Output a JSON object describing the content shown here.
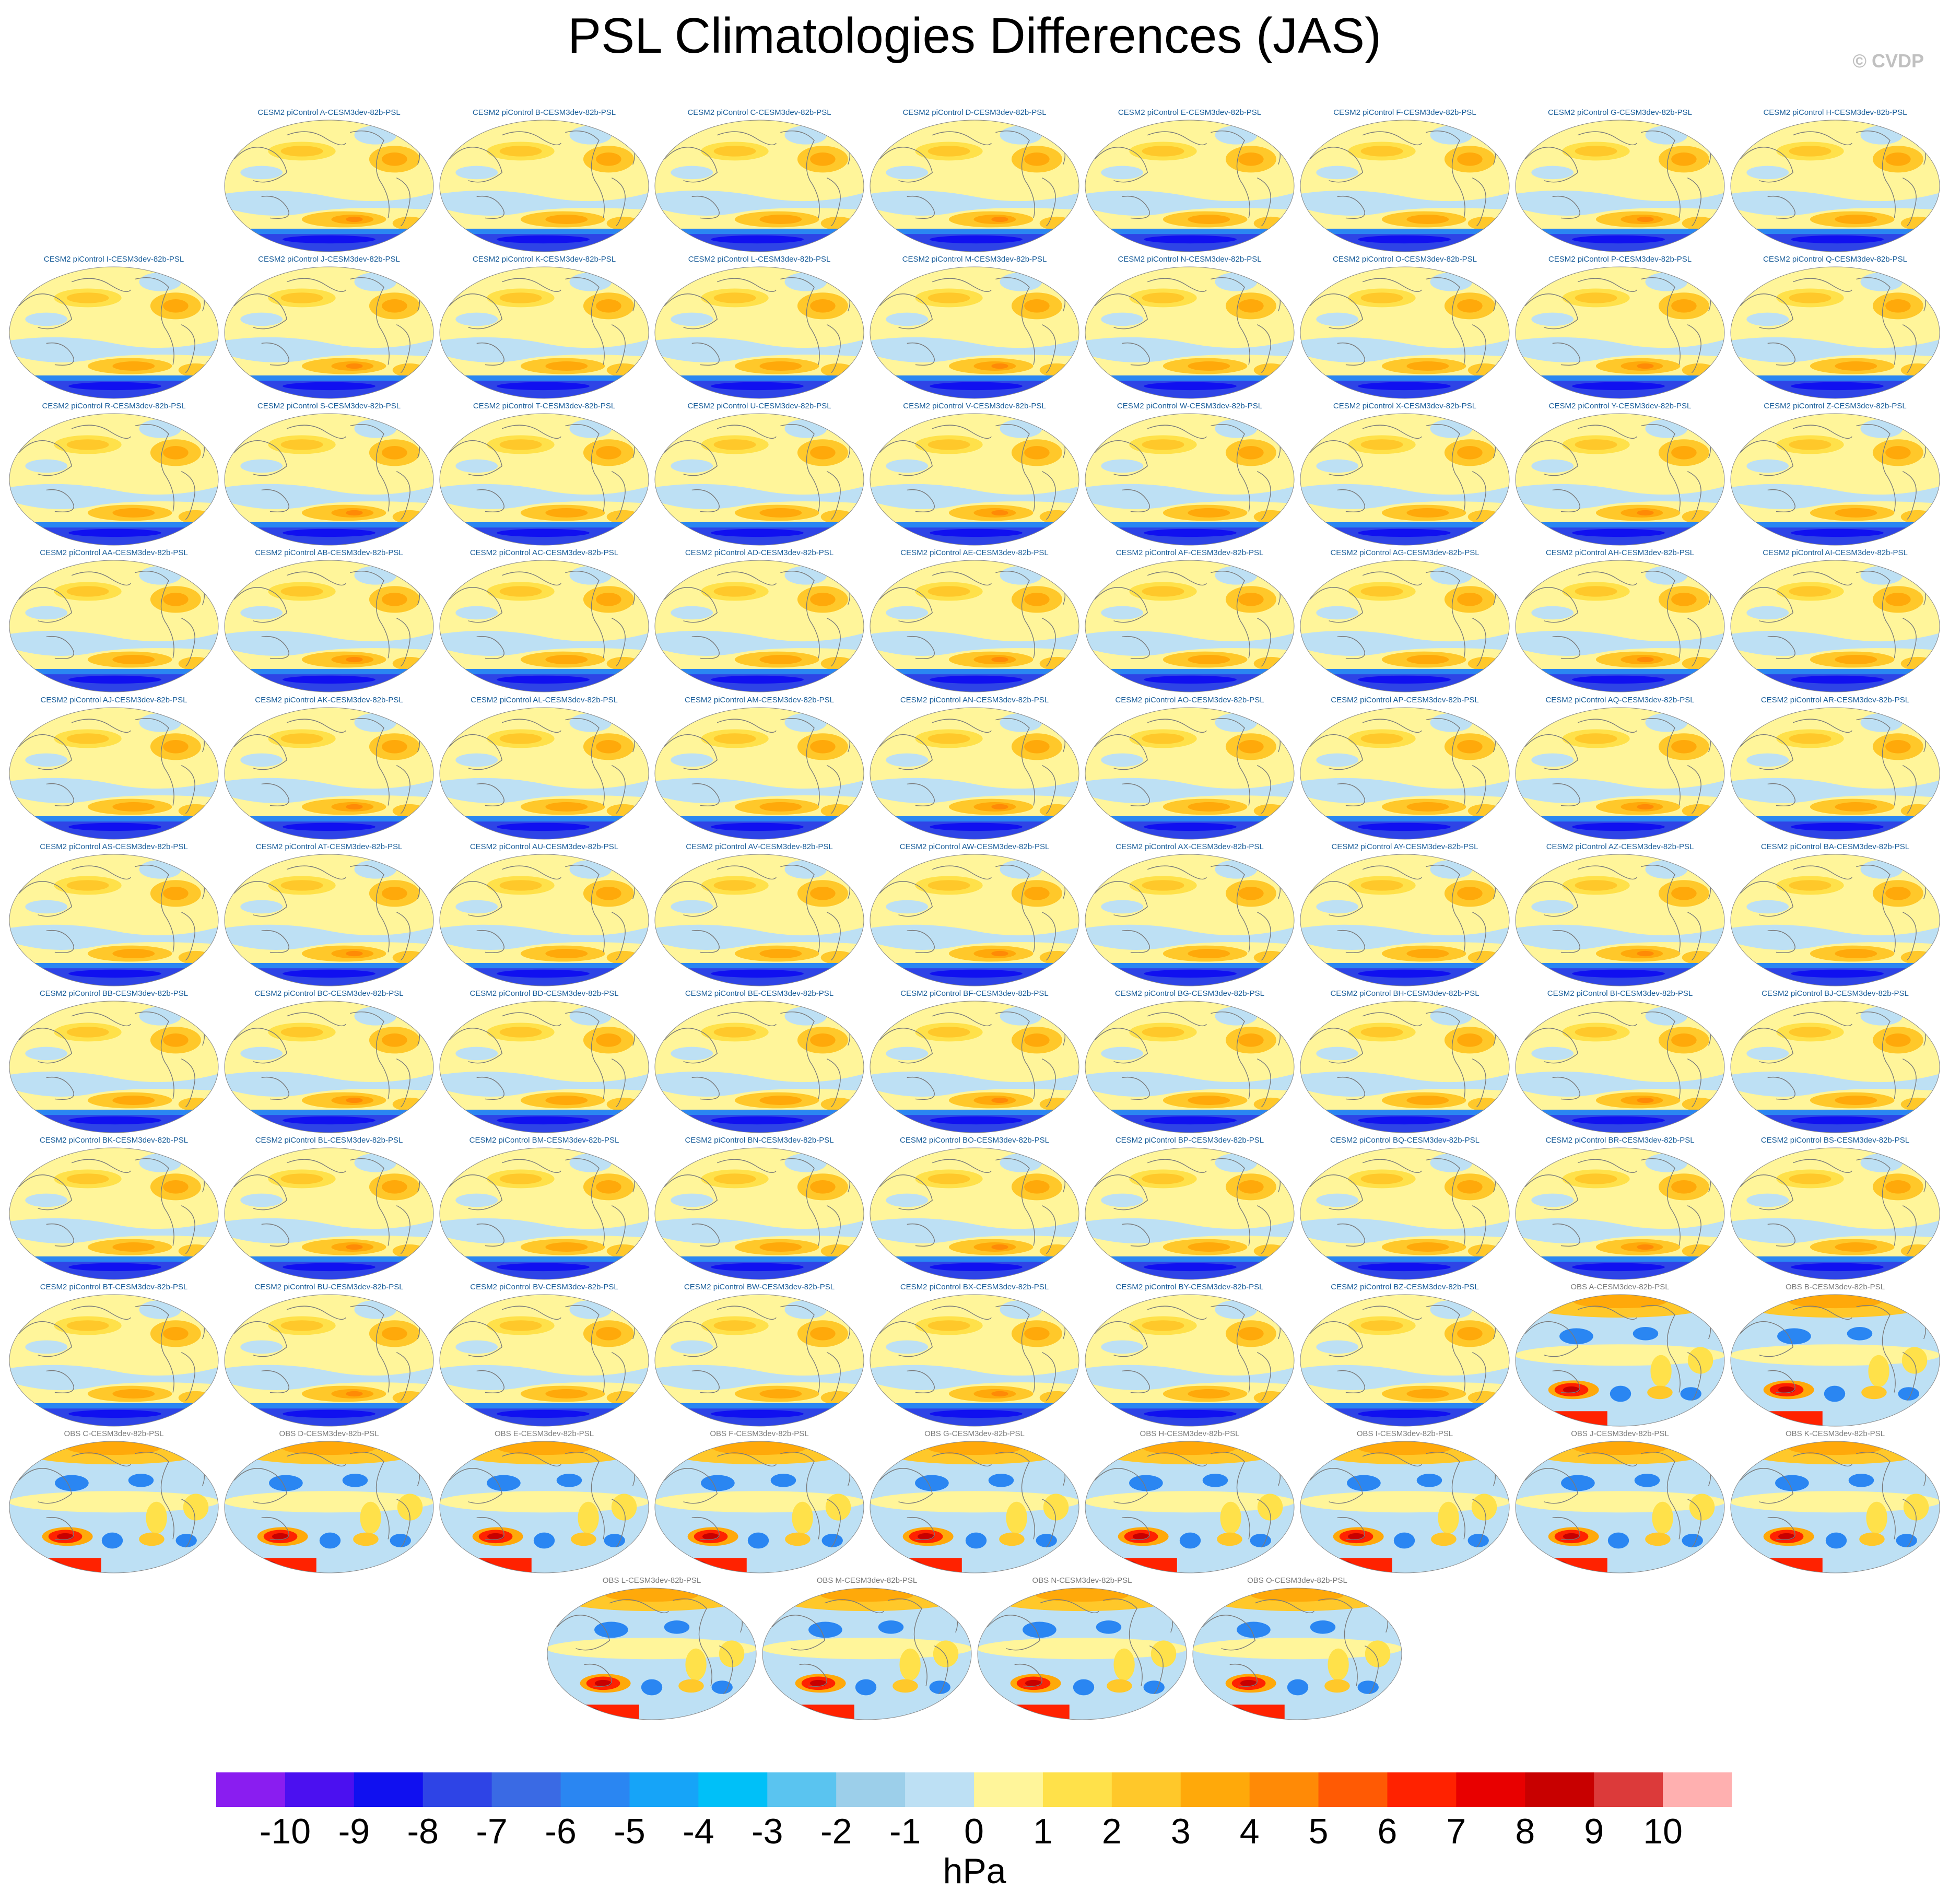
{
  "header": {
    "title": "PSL Climatologies Differences (JAS)",
    "copyright": "© CVDP"
  },
  "panels": [
    {
      "label": "CESM2 piControl A-CESM3dev-82b-PSL",
      "kind": "model"
    },
    {
      "label": "CESM2 piControl B-CESM3dev-82b-PSL",
      "kind": "model"
    },
    {
      "label": "CESM2 piControl C-CESM3dev-82b-PSL",
      "kind": "model"
    },
    {
      "label": "CESM2 piControl D-CESM3dev-82b-PSL",
      "kind": "model"
    },
    {
      "label": "CESM2 piControl E-CESM3dev-82b-PSL",
      "kind": "model"
    },
    {
      "label": "CESM2 piControl F-CESM3dev-82b-PSL",
      "kind": "model"
    },
    {
      "label": "CESM2 piControl G-CESM3dev-82b-PSL",
      "kind": "model"
    },
    {
      "label": "CESM2 piControl H-CESM3dev-82b-PSL",
      "kind": "model"
    },
    {
      "label": "CESM2 piControl I-CESM3dev-82b-PSL",
      "kind": "model"
    },
    {
      "label": "CESM2 piControl J-CESM3dev-82b-PSL",
      "kind": "model"
    },
    {
      "label": "CESM2 piControl K-CESM3dev-82b-PSL",
      "kind": "model"
    },
    {
      "label": "CESM2 piControl L-CESM3dev-82b-PSL",
      "kind": "model"
    },
    {
      "label": "CESM2 piControl M-CESM3dev-82b-PSL",
      "kind": "model"
    },
    {
      "label": "CESM2 piControl N-CESM3dev-82b-PSL",
      "kind": "model"
    },
    {
      "label": "CESM2 piControl O-CESM3dev-82b-PSL",
      "kind": "model"
    },
    {
      "label": "CESM2 piControl P-CESM3dev-82b-PSL",
      "kind": "model"
    },
    {
      "label": "CESM2 piControl Q-CESM3dev-82b-PSL",
      "kind": "model"
    },
    {
      "label": "CESM2 piControl R-CESM3dev-82b-PSL",
      "kind": "model"
    },
    {
      "label": "CESM2 piControl S-CESM3dev-82b-PSL",
      "kind": "model"
    },
    {
      "label": "CESM2 piControl T-CESM3dev-82b-PSL",
      "kind": "model"
    },
    {
      "label": "CESM2 piControl U-CESM3dev-82b-PSL",
      "kind": "model"
    },
    {
      "label": "CESM2 piControl V-CESM3dev-82b-PSL",
      "kind": "model"
    },
    {
      "label": "CESM2 piControl W-CESM3dev-82b-PSL",
      "kind": "model"
    },
    {
      "label": "CESM2 piControl X-CESM3dev-82b-PSL",
      "kind": "model"
    },
    {
      "label": "CESM2 piControl Y-CESM3dev-82b-PSL",
      "kind": "model"
    },
    {
      "label": "CESM2 piControl Z-CESM3dev-82b-PSL",
      "kind": "model"
    },
    {
      "label": "CESM2 piControl AA-CESM3dev-82b-PSL",
      "kind": "model"
    },
    {
      "label": "CESM2 piControl AB-CESM3dev-82b-PSL",
      "kind": "model"
    },
    {
      "label": "CESM2 piControl AC-CESM3dev-82b-PSL",
      "kind": "model"
    },
    {
      "label": "CESM2 piControl AD-CESM3dev-82b-PSL",
      "kind": "model"
    },
    {
      "label": "CESM2 piControl AE-CESM3dev-82b-PSL",
      "kind": "model"
    },
    {
      "label": "CESM2 piControl AF-CESM3dev-82b-PSL",
      "kind": "model"
    },
    {
      "label": "CESM2 piControl AG-CESM3dev-82b-PSL",
      "kind": "model"
    },
    {
      "label": "CESM2 piControl AH-CESM3dev-82b-PSL",
      "kind": "model"
    },
    {
      "label": "CESM2 piControl AI-CESM3dev-82b-PSL",
      "kind": "model"
    },
    {
      "label": "CESM2 piControl AJ-CESM3dev-82b-PSL",
      "kind": "model"
    },
    {
      "label": "CESM2 piControl AK-CESM3dev-82b-PSL",
      "kind": "model"
    },
    {
      "label": "CESM2 piControl AL-CESM3dev-82b-PSL",
      "kind": "model"
    },
    {
      "label": "CESM2 piControl AM-CESM3dev-82b-PSL",
      "kind": "model"
    },
    {
      "label": "CESM2 piControl AN-CESM3dev-82b-PSL",
      "kind": "model"
    },
    {
      "label": "CESM2 piControl AO-CESM3dev-82b-PSL",
      "kind": "model"
    },
    {
      "label": "CESM2 piControl AP-CESM3dev-82b-PSL",
      "kind": "model"
    },
    {
      "label": "CESM2 piControl AQ-CESM3dev-82b-PSL",
      "kind": "model"
    },
    {
      "label": "CESM2 piControl AR-CESM3dev-82b-PSL",
      "kind": "model"
    },
    {
      "label": "CESM2 piControl AS-CESM3dev-82b-PSL",
      "kind": "model"
    },
    {
      "label": "CESM2 piControl AT-CESM3dev-82b-PSL",
      "kind": "model"
    },
    {
      "label": "CESM2 piControl AU-CESM3dev-82b-PSL",
      "kind": "model"
    },
    {
      "label": "CESM2 piControl AV-CESM3dev-82b-PSL",
      "kind": "model"
    },
    {
      "label": "CESM2 piControl AW-CESM3dev-82b-PSL",
      "kind": "model"
    },
    {
      "label": "CESM2 piControl AX-CESM3dev-82b-PSL",
      "kind": "model"
    },
    {
      "label": "CESM2 piControl AY-CESM3dev-82b-PSL",
      "kind": "model"
    },
    {
      "label": "CESM2 piControl AZ-CESM3dev-82b-PSL",
      "kind": "model"
    },
    {
      "label": "CESM2 piControl BA-CESM3dev-82b-PSL",
      "kind": "model"
    },
    {
      "label": "CESM2 piControl BB-CESM3dev-82b-PSL",
      "kind": "model"
    },
    {
      "label": "CESM2 piControl BC-CESM3dev-82b-PSL",
      "kind": "model"
    },
    {
      "label": "CESM2 piControl BD-CESM3dev-82b-PSL",
      "kind": "model"
    },
    {
      "label": "CESM2 piControl BE-CESM3dev-82b-PSL",
      "kind": "model"
    },
    {
      "label": "CESM2 piControl BF-CESM3dev-82b-PSL",
      "kind": "model"
    },
    {
      "label": "CESM2 piControl BG-CESM3dev-82b-PSL",
      "kind": "model"
    },
    {
      "label": "CESM2 piControl BH-CESM3dev-82b-PSL",
      "kind": "model"
    },
    {
      "label": "CESM2 piControl BI-CESM3dev-82b-PSL",
      "kind": "model"
    },
    {
      "label": "CESM2 piControl BJ-CESM3dev-82b-PSL",
      "kind": "model"
    },
    {
      "label": "CESM2 piControl BK-CESM3dev-82b-PSL",
      "kind": "model"
    },
    {
      "label": "CESM2 piControl BL-CESM3dev-82b-PSL",
      "kind": "model"
    },
    {
      "label": "CESM2 piControl BM-CESM3dev-82b-PSL",
      "kind": "model"
    },
    {
      "label": "CESM2 piControl BN-CESM3dev-82b-PSL",
      "kind": "model"
    },
    {
      "label": "CESM2 piControl BO-CESM3dev-82b-PSL",
      "kind": "model"
    },
    {
      "label": "CESM2 piControl BP-CESM3dev-82b-PSL",
      "kind": "model"
    },
    {
      "label": "CESM2 piControl BQ-CESM3dev-82b-PSL",
      "kind": "model"
    },
    {
      "label": "CESM2 piControl BR-CESM3dev-82b-PSL",
      "kind": "model"
    },
    {
      "label": "CESM2 piControl BS-CESM3dev-82b-PSL",
      "kind": "model"
    },
    {
      "label": "CESM2 piControl BT-CESM3dev-82b-PSL",
      "kind": "model"
    },
    {
      "label": "CESM2 piControl BU-CESM3dev-82b-PSL",
      "kind": "model"
    },
    {
      "label": "CESM2 piControl BV-CESM3dev-82b-PSL",
      "kind": "model"
    },
    {
      "label": "CESM2 piControl BW-CESM3dev-82b-PSL",
      "kind": "model"
    },
    {
      "label": "CESM2 piControl BX-CESM3dev-82b-PSL",
      "kind": "model"
    },
    {
      "label": "CESM2 piControl BY-CESM3dev-82b-PSL",
      "kind": "model"
    },
    {
      "label": "CESM2 piControl BZ-CESM3dev-82b-PSL",
      "kind": "model"
    },
    {
      "label": "OBS A-CESM3dev-82b-PSL",
      "kind": "obs"
    },
    {
      "label": "OBS B-CESM3dev-82b-PSL",
      "kind": "obs"
    },
    {
      "label": "OBS C-CESM3dev-82b-PSL",
      "kind": "obs"
    },
    {
      "label": "OBS D-CESM3dev-82b-PSL",
      "kind": "obs"
    },
    {
      "label": "OBS E-CESM3dev-82b-PSL",
      "kind": "obs"
    },
    {
      "label": "OBS F-CESM3dev-82b-PSL",
      "kind": "obs"
    },
    {
      "label": "OBS G-CESM3dev-82b-PSL",
      "kind": "obs"
    },
    {
      "label": "OBS H-CESM3dev-82b-PSL",
      "kind": "obs"
    },
    {
      "label": "OBS I-CESM3dev-82b-PSL",
      "kind": "obs"
    },
    {
      "label": "OBS J-CESM3dev-82b-PSL",
      "kind": "obs"
    },
    {
      "label": "OBS K-CESM3dev-82b-PSL",
      "kind": "obs"
    },
    {
      "label": "OBS L-CESM3dev-82b-PSL",
      "kind": "obs"
    },
    {
      "label": "OBS M-CESM3dev-82b-PSL",
      "kind": "obs"
    },
    {
      "label": "OBS N-CESM3dev-82b-PSL",
      "kind": "obs"
    },
    {
      "label": "OBS O-CESM3dev-82b-PSL",
      "kind": "obs"
    }
  ],
  "colorbar": {
    "units": "hPa",
    "tick_labels": [
      "-10",
      "-9",
      "-8",
      "-7",
      "-6",
      "-5",
      "-4",
      "-3",
      "-2",
      "-1",
      "0",
      "1",
      "2",
      "3",
      "4",
      "5",
      "6",
      "7",
      "8",
      "9",
      "10"
    ],
    "colors": [
      "#8a1df0",
      "#4b10f0",
      "#1010f0",
      "#2e44e6",
      "#3a6ae4",
      "#2a86f2",
      "#16a4f8",
      "#00c0f8",
      "#5ac4f0",
      "#9ccfea",
      "#bde0f4",
      "#fff59a",
      "#ffe14a",
      "#ffc82a",
      "#ffa90a",
      "#ff8a06",
      "#ff5a04",
      "#ff2200",
      "#e80000",
      "#c80000",
      "#dc3a3a",
      "#ffb0b0"
    ]
  },
  "palette": {
    "ocean_light_blue": "#bde0f4",
    "pale_yellow": "#fff59a",
    "yellow": "#ffe14a",
    "gold": "#ffc82a",
    "orange": "#ffa90a",
    "deep_orange": "#ff8a06",
    "red": "#ff2200",
    "dark_red": "#c80000",
    "blue": "#2a86f2",
    "dark_blue": "#2e44e6",
    "royal_blue": "#1010f0",
    "coast_gray": "#7a7a7a"
  }
}
